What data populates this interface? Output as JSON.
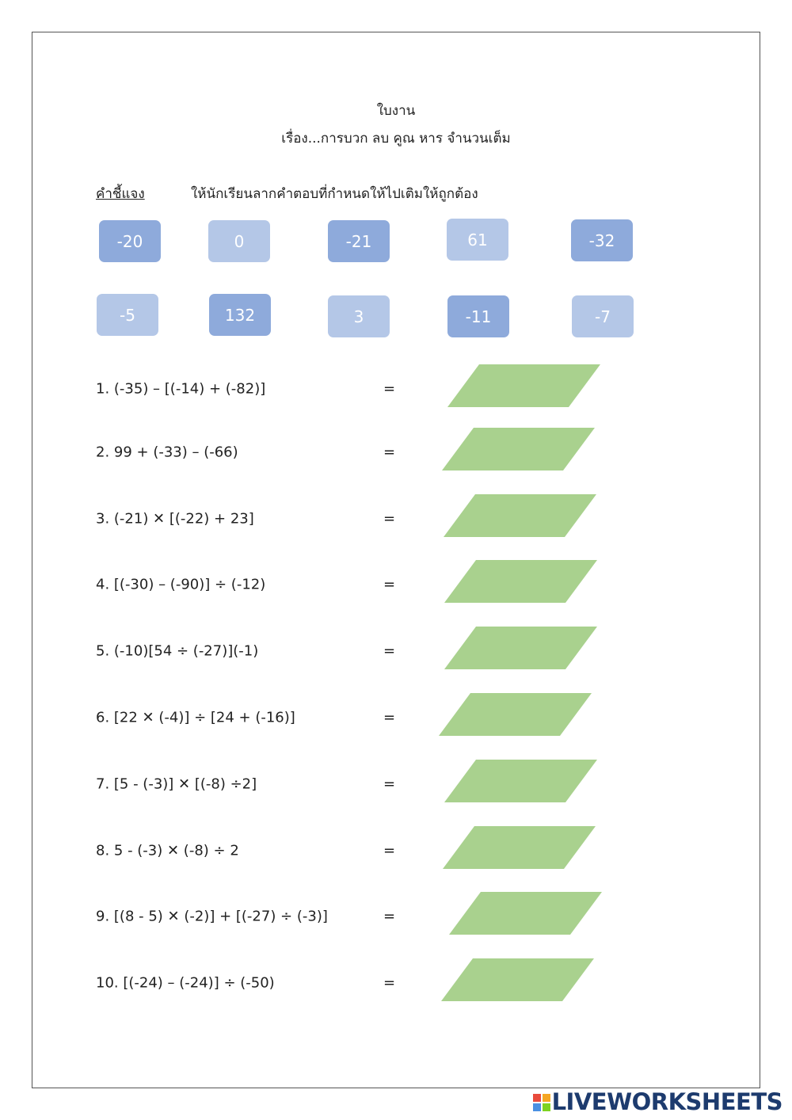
{
  "header": {
    "title": "ใบงาน",
    "subtitle": "เรื่อง...การบวก ลบ คูณ หาร จำนวนเต็ม"
  },
  "instruction": {
    "label": "คำชี้แจง",
    "text": "ให้นักเรียนลากคำตอบที่กำหนดให้ไปเติมให้ถูกต้อง"
  },
  "tiles": [
    {
      "text": "-20",
      "color": "#8eaadb"
    },
    {
      "text": "0",
      "color": "#b4c7e7"
    },
    {
      "text": "-21",
      "color": "#8eaadb"
    },
    {
      "text": "61",
      "color": "#b4c7e7"
    },
    {
      "text": "-32",
      "color": "#8eaadb"
    },
    {
      "text": "-5",
      "color": "#b4c7e7"
    },
    {
      "text": "132",
      "color": "#8eaadb"
    },
    {
      "text": "3",
      "color": "#b4c7e7"
    },
    {
      "text": "-11",
      "color": "#8eaadb"
    },
    {
      "text": "-7",
      "color": "#b4c7e7"
    }
  ],
  "problems": [
    {
      "text": "1. (-35) – [(-14) + (-82)]",
      "equals": "="
    },
    {
      "text": "2. 99 + (-33) – (-66)",
      "equals": "="
    },
    {
      "text": "3. (-21) ✕ [(-22) + 23]",
      "equals": "="
    },
    {
      "text": "4. [(-30) – (-90)] ÷ (-12)",
      "equals": "="
    },
    {
      "text": "5. (-10)[54 ÷ (-27)](-1)",
      "equals": "="
    },
    {
      "text": "6. [22 ✕ (-4)] ÷ [24 + (-16)]",
      "equals": "="
    },
    {
      "text": "7. [5 - (-3)] ✕ [(-8) ÷2]",
      "equals": "="
    },
    {
      "text": "8. 5 - (-3) ✕ (-8) ÷ 2",
      "equals": "="
    },
    {
      "text": "9. [(8 - 5) ✕ (-2)] + [(-27) ÷ (-3)]",
      "equals": "="
    },
    {
      "text": "10. [(-24) – (-24)] ÷ (-50)",
      "equals": "="
    }
  ],
  "answer_color": "#a9d18e",
  "brand": "LIVEWORKSHEETS"
}
